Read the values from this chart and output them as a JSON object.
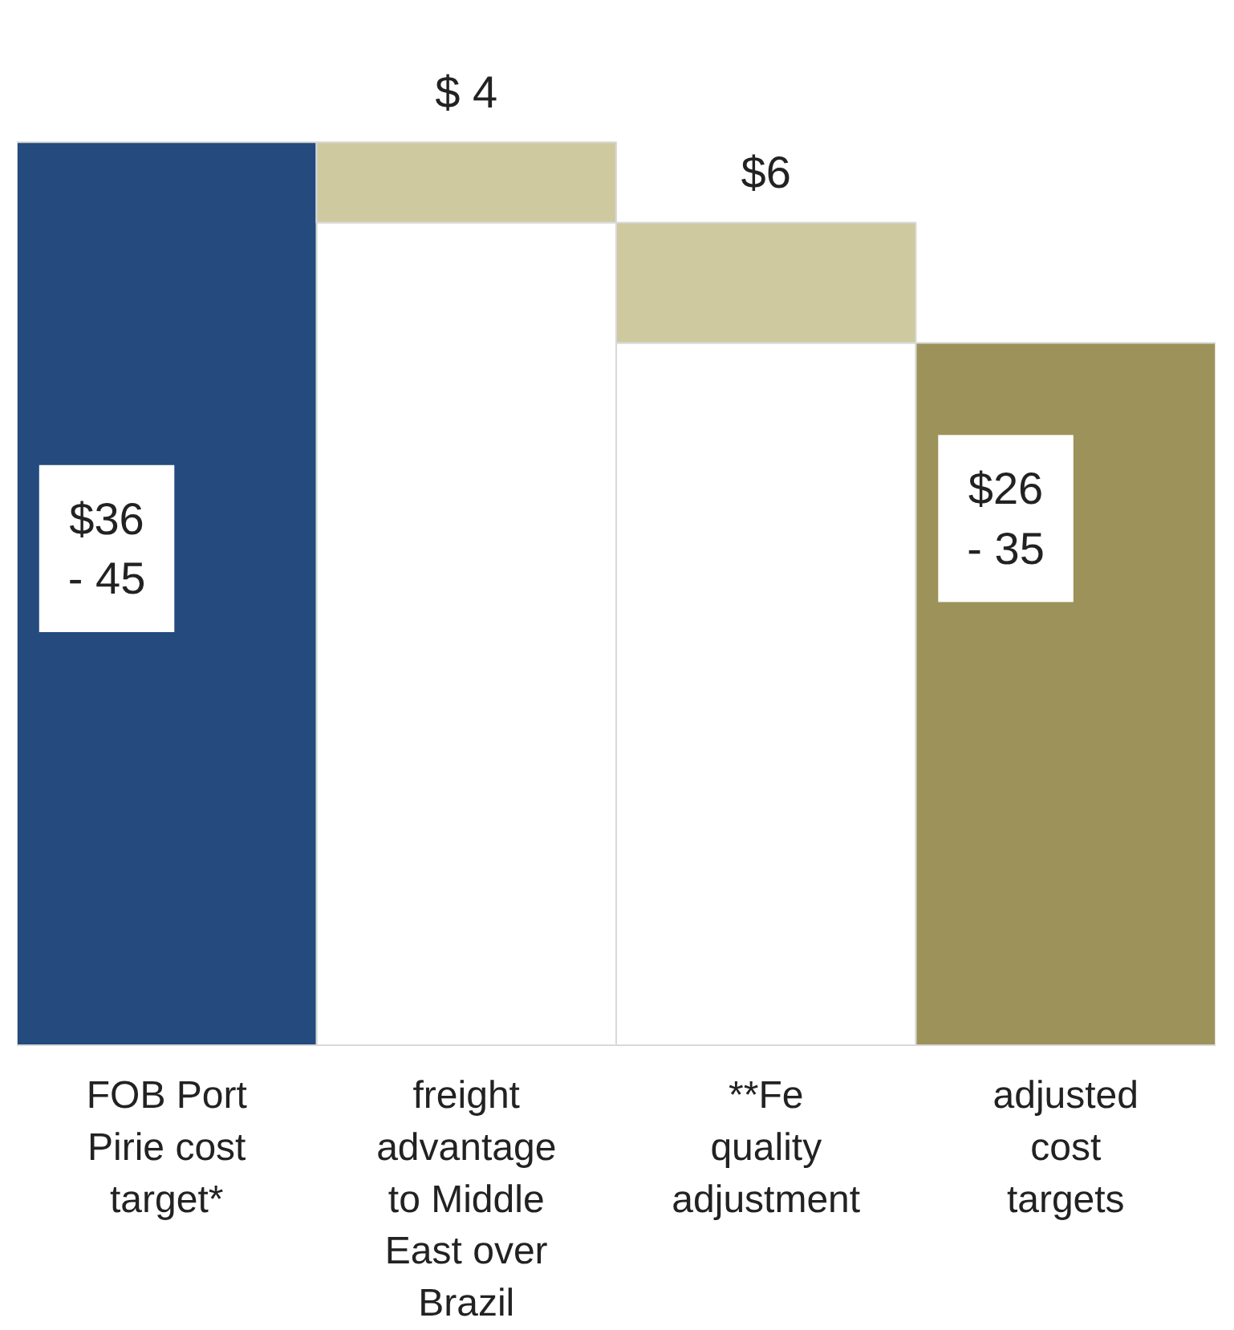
{
  "chart_data": {
    "type": "bar",
    "stacked": true,
    "categories": [
      "FOB Port Pirie cost target*",
      "freight advantage to Middle East over Brazil",
      "**Fe quality adjustment",
      "adjusted cost targets"
    ],
    "series": [
      {
        "color": "#ffffff",
        "values": [
          null,
          41,
          35,
          null
        ]
      },
      {
        "colors": [
          "#244a7e",
          "#cfc99f",
          "#cfc99f",
          "#9d9259"
        ],
        "values": [
          45,
          4,
          6,
          35
        ],
        "value_labels": [
          null,
          "$ 4",
          "$6",
          null
        ]
      }
    ],
    "annotations": [
      "$36\n- 45",
      "$26\n- 35"
    ],
    "tick_labels": "x",
    "grid": false
  }
}
